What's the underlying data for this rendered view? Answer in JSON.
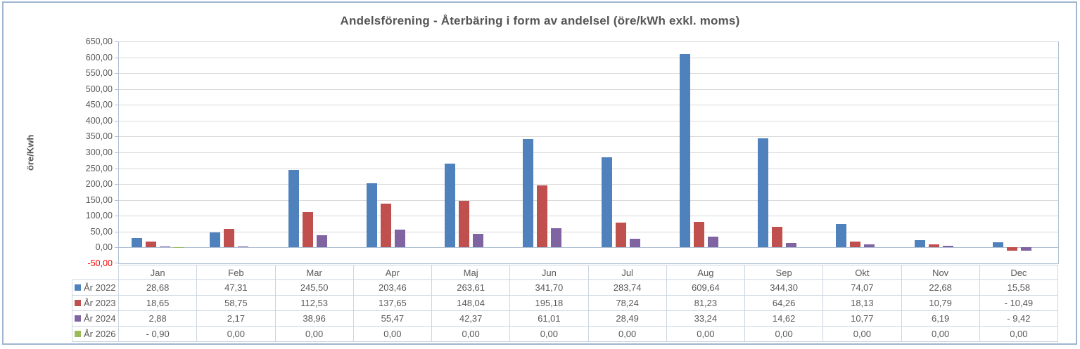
{
  "title": "Andelsförening - Återbäring i form av andelsel (öre/kWh exkl. moms)",
  "colors": {
    "series_2022": "#4F81BD",
    "series_2023": "#C0504D",
    "series_2024": "#8064A2",
    "series_2026": "#9BBB59",
    "negative_axis_label": "#FF0000",
    "frame_border": "#9FB6D0",
    "gridline": "#D9D9D9",
    "axis_line": "#AEBFD3",
    "text": "#595959"
  },
  "chart_data": {
    "type": "bar",
    "title": "Andelsförening - Återbäring i form av andelsel (öre/kWh exkl. moms)",
    "xlabel": "",
    "ylabel": "öre/Kwh",
    "ylim": [
      -50,
      650
    ],
    "ytick_step": 50,
    "grid": true,
    "legend_position": "table-left",
    "categories": [
      "Jan",
      "Feb",
      "Mar",
      "Apr",
      "Maj",
      "Jun",
      "Jul",
      "Aug",
      "Sep",
      "Okt",
      "Nov",
      "Dec"
    ],
    "series": [
      {
        "name": "År 2022",
        "color": "#4F81BD",
        "values": [
          28.68,
          47.31,
          245.5,
          203.46,
          263.61,
          341.7,
          283.74,
          609.64,
          344.3,
          74.07,
          22.68,
          15.58
        ]
      },
      {
        "name": "År 2023",
        "color": "#C0504D",
        "values": [
          18.65,
          58.75,
          112.53,
          137.65,
          148.04,
          195.18,
          78.24,
          81.23,
          64.26,
          18.13,
          10.79,
          -10.49
        ]
      },
      {
        "name": "År 2024",
        "color": "#8064A2",
        "values": [
          2.88,
          2.17,
          38.96,
          55.47,
          42.37,
          61.01,
          28.49,
          33.24,
          14.62,
          10.77,
          6.19,
          -9.42
        ]
      },
      {
        "name": "År 2026",
        "color": "#9BBB59",
        "values": [
          -0.9,
          0.0,
          0.0,
          0.0,
          0.0,
          0.0,
          0.0,
          0.0,
          0.0,
          0.0,
          0.0,
          0.0
        ]
      }
    ]
  }
}
